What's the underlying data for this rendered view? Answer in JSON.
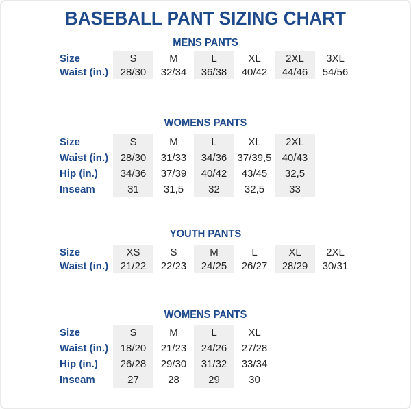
{
  "page": {
    "title": "BASEBALL PANT SIZING CHART"
  },
  "colors": {
    "heading_navy": "#1e4a8b",
    "body_text": "#262626",
    "column_shade": "#f0efef",
    "frame_border": "#e9e9e9",
    "background": "#ffffff"
  },
  "tables": [
    {
      "section_title": "MENS PANTS",
      "rows": [
        {
          "label": "Size",
          "values": [
            "S",
            "M",
            "L",
            "XL",
            "2XL",
            "3XL"
          ]
        },
        {
          "label": "Waist (in.)",
          "values": [
            "28/30",
            "32/34",
            "36/38",
            "40/42",
            "44/46",
            "54/56"
          ]
        }
      ]
    },
    {
      "section_title": "WOMENS PANTS",
      "rows": [
        {
          "label": "Size",
          "values": [
            "S",
            "M",
            "L",
            "XL",
            "2XL"
          ]
        },
        {
          "label": "Waist (in.)",
          "values": [
            "28/30",
            "31/33",
            "34/36",
            "37/39,5",
            "40/43"
          ]
        },
        {
          "label": "Hip (in.)",
          "values": [
            "34/36",
            "37/39",
            "40/42",
            "43/45",
            "32,5"
          ]
        },
        {
          "label": "Inseam",
          "values": [
            "31",
            "31,5",
            "32",
            "32,5",
            "33"
          ]
        }
      ]
    },
    {
      "section_title": "YOUTH PANTS",
      "rows": [
        {
          "label": "Size",
          "values": [
            "XS",
            "S",
            "M",
            "L",
            "XL",
            "2XL"
          ]
        },
        {
          "label": "Waist (in.)",
          "values": [
            "21/22",
            "22/23",
            "24/25",
            "26/27",
            "28/29",
            "30/31"
          ]
        }
      ]
    },
    {
      "section_title": "WOMENS PANTS",
      "rows": [
        {
          "label": "Size",
          "values": [
            "S",
            "M",
            "L",
            "XL"
          ]
        },
        {
          "label": "Waist (in.)",
          "values": [
            "18/20",
            "21/23",
            "24/26",
            "27/28"
          ]
        },
        {
          "label": "Hip (in.)",
          "values": [
            "26/28",
            "29/30",
            "31/32",
            "33/34"
          ]
        },
        {
          "label": "Inseam",
          "values": [
            "27",
            "28",
            "29",
            "30"
          ]
        }
      ]
    }
  ]
}
